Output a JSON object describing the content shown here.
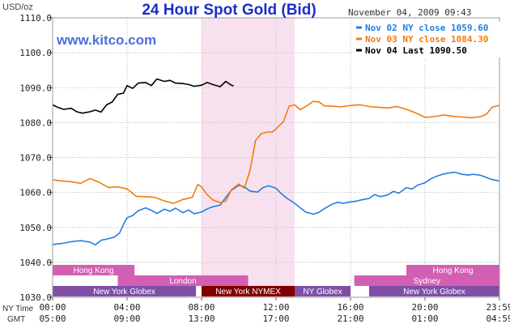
{
  "colors": {
    "title": "#1c2ec9",
    "site": "#4a6fd8",
    "pink_band": "#f8e1ef",
    "session_pink": "#d35fb4",
    "session_purple": "#7f4fa7",
    "session_nymex": "#800000",
    "grid": "#b8b8b8",
    "nov02": "#1f7fe0",
    "nov03": "#f07c10",
    "nov04": "#000000"
  },
  "chart_data": {
    "type": "line",
    "title": "24 Hour Spot Gold (Bid)",
    "timestamp": "November 04, 2009 09:43",
    "site": "www.kitco.com",
    "unit_label": "USD/oz",
    "y_ticks": [
      "1030.0",
      "1040.0",
      "1050.0",
      "1060.0",
      "1070.0",
      "1080.0",
      "1090.0",
      "1100.0",
      "1110.0"
    ],
    "ylim": [
      1030,
      1110
    ],
    "xlim_hours": [
      0,
      24
    ],
    "x_tick_labels_ny": [
      "00:00",
      "04:00",
      "08:00",
      "12:00",
      "16:00",
      "20:00",
      "23:59"
    ],
    "x_tick_labels_gmt": [
      "05:00",
      "09:00",
      "13:00",
      "17:00",
      "21:00",
      "01:00",
      "04:59"
    ],
    "row_label_ny": "NY Time",
    "row_label_gmt": "GMT",
    "highlight_hours": [
      8,
      13
    ],
    "legend": {
      "position": "top-right",
      "entries": [
        {
          "label": "Nov 02 NY close 1059.60",
          "color": "#1f7fe0"
        },
        {
          "label": "Nov 03 NY close 1084.30",
          "color": "#f07c10"
        },
        {
          "label": "Nov 04 Last 1090.50",
          "color": "#000000"
        }
      ]
    },
    "sessions": [
      {
        "label": "Hong Kong",
        "row": 0,
        "start": 0,
        "end": 4.4,
        "color": "#d35fb4"
      },
      {
        "label": "Hong Kong",
        "row": 0,
        "start": 19,
        "end": 24,
        "color": "#d35fb4"
      },
      {
        "label": "London",
        "row": 1,
        "start": 3.5,
        "end": 10.5,
        "color": "#d35fb4"
      },
      {
        "label": "Sydney",
        "row": 1,
        "start": 16.2,
        "end": 24,
        "color": "#d35fb4"
      },
      {
        "label": "New York Globex",
        "row": 2,
        "start": 0,
        "end": 7.7,
        "color": "#7f4fa7"
      },
      {
        "label": "New York NYMEX",
        "row": 2,
        "start": 8,
        "end": 13,
        "color": "#800000"
      },
      {
        "label": "NY Globex",
        "row": 2,
        "start": 13,
        "end": 16,
        "color": "#7f4fa7"
      },
      {
        "label": "New York Globex",
        "row": 2,
        "start": 17,
        "end": 24,
        "color": "#7f4fa7"
      }
    ],
    "series": [
      {
        "name": "Nov 02",
        "color": "#1f7fe0",
        "x": [
          0,
          0.5,
          1,
          1.5,
          2,
          2.3,
          2.6,
          3,
          3.3,
          3.6,
          3.8,
          4,
          4.3,
          4.6,
          5,
          5.3,
          5.6,
          6,
          6.3,
          6.6,
          7,
          7.3,
          7.6,
          8,
          8.3,
          8.6,
          9,
          9.3,
          9.6,
          10,
          10.3,
          10.6,
          11,
          11.3,
          11.6,
          12,
          12.3,
          12.6,
          13,
          13.3,
          13.6,
          14,
          14.3,
          14.6,
          15,
          15.3,
          15.6,
          16,
          16.3,
          16.6,
          17,
          17.3,
          17.6,
          18,
          18.3,
          18.6,
          19,
          19.3,
          19.6,
          20,
          20.3,
          20.6,
          21,
          21.3,
          21.6,
          22,
          22.3,
          22.6,
          23,
          23.3,
          23.6,
          23.98
        ],
        "y": [
          1045.1,
          1045.4,
          1045.9,
          1046.2,
          1045.8,
          1045.0,
          1046.3,
          1046.8,
          1047.2,
          1048.4,
          1050.8,
          1052.8,
          1053.4,
          1054.8,
          1055.6,
          1054.9,
          1054.0,
          1055.2,
          1054.6,
          1055.5,
          1054.2,
          1055.0,
          1053.9,
          1054.4,
          1055.3,
          1055.9,
          1056.4,
          1058.6,
          1060.6,
          1062.0,
          1061.6,
          1060.4,
          1060.1,
          1061.4,
          1061.9,
          1061.2,
          1059.6,
          1058.3,
          1056.9,
          1055.6,
          1054.4,
          1053.8,
          1054.3,
          1055.4,
          1056.6,
          1057.2,
          1056.9,
          1057.3,
          1057.5,
          1057.9,
          1058.3,
          1059.4,
          1058.8,
          1059.3,
          1060.3,
          1059.8,
          1061.4,
          1061.0,
          1062.1,
          1062.8,
          1063.9,
          1064.6,
          1065.3,
          1065.6,
          1065.8,
          1065.2,
          1065.0,
          1065.2,
          1064.9,
          1064.3,
          1063.7,
          1063.3
        ]
      },
      {
        "name": "Nov 03",
        "color": "#f07c10",
        "x": [
          0,
          0.5,
          1,
          1.5,
          2,
          2.5,
          3,
          3.5,
          4,
          4.5,
          5,
          5.5,
          6,
          6.5,
          7,
          7.5,
          7.8,
          8,
          8.3,
          8.6,
          9,
          9.3,
          9.6,
          10,
          10.3,
          10.6,
          10.9,
          11.2,
          11.5,
          11.8,
          12,
          12.4,
          12.7,
          13,
          13.3,
          13.6,
          14,
          14.3,
          14.6,
          15,
          15.5,
          16,
          16.5,
          17,
          17.5,
          18,
          18.5,
          19,
          19.5,
          20,
          20.5,
          21,
          21.5,
          22,
          22.5,
          23,
          23.3,
          23.6,
          23.98
        ],
        "y": [
          1063.6,
          1063.3,
          1063.1,
          1062.6,
          1064.0,
          1062.9,
          1061.4,
          1061.6,
          1061.0,
          1058.9,
          1058.8,
          1058.6,
          1057.6,
          1056.9,
          1058.0,
          1058.6,
          1062.3,
          1061.6,
          1059.4,
          1057.9,
          1057.1,
          1057.5,
          1060.8,
          1062.4,
          1061.2,
          1066.3,
          1074.9,
          1076.8,
          1077.3,
          1077.3,
          1078.2,
          1080.3,
          1084.7,
          1085.1,
          1083.7,
          1084.6,
          1086.1,
          1085.9,
          1084.8,
          1084.7,
          1084.5,
          1084.9,
          1085.1,
          1084.6,
          1084.4,
          1084.2,
          1084.6,
          1083.8,
          1082.8,
          1081.5,
          1081.7,
          1082.2,
          1081.8,
          1081.6,
          1081.4,
          1081.7,
          1082.4,
          1084.4,
          1084.9
        ]
      },
      {
        "name": "Nov 04",
        "color": "#000000",
        "x": [
          0,
          0.3,
          0.6,
          1,
          1.3,
          1.6,
          2,
          2.3,
          2.6,
          2.9,
          3.2,
          3.5,
          3.8,
          4,
          4.3,
          4.6,
          5,
          5.3,
          5.6,
          6,
          6.3,
          6.6,
          7,
          7.3,
          7.6,
          8,
          8.3,
          8.6,
          9,
          9.3,
          9.6,
          9.72
        ],
        "y": [
          1085.1,
          1084.3,
          1083.8,
          1084.1,
          1083.1,
          1082.7,
          1083.1,
          1083.6,
          1083.0,
          1085.1,
          1085.9,
          1088.1,
          1088.4,
          1090.6,
          1089.8,
          1091.3,
          1091.5,
          1090.6,
          1092.5,
          1091.8,
          1092.1,
          1091.3,
          1091.2,
          1090.9,
          1090.4,
          1090.7,
          1091.5,
          1090.9,
          1090.3,
          1091.8,
          1090.7,
          1090.5
        ]
      }
    ]
  }
}
